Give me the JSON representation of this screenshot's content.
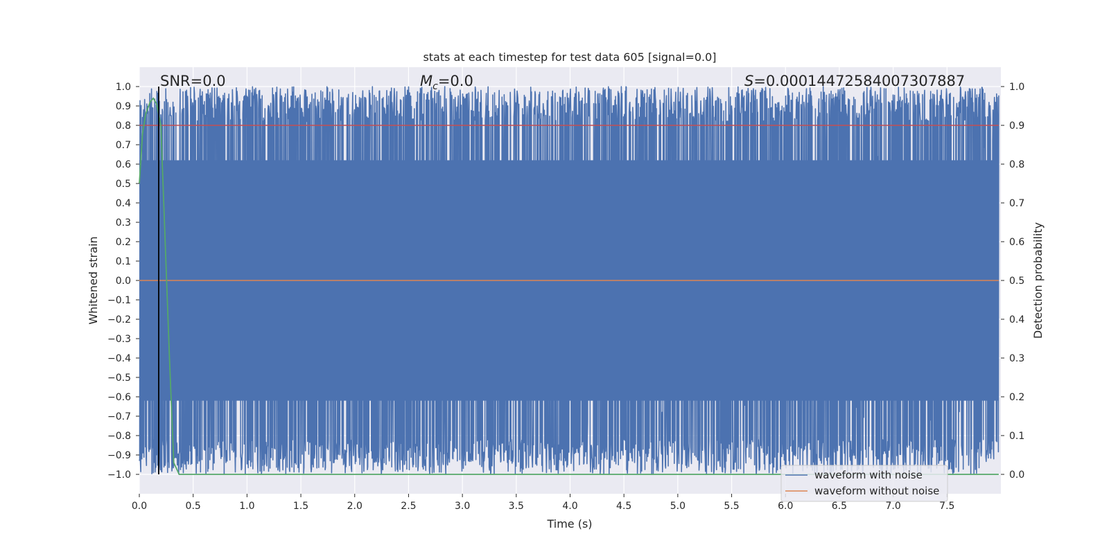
{
  "chart_data": {
    "type": "line",
    "title": "stats at each timestep for test data 605 [signal=0.0]",
    "xlabel": "Time (s)",
    "ylabel": "Whitened strain",
    "ylabel_right": "Detection probability",
    "xlim": [
      0.0,
      8.0
    ],
    "ylim": [
      -1.1,
      1.1
    ],
    "ylim_right": [
      -0.05,
      1.05
    ],
    "x_ticks": [
      0.0,
      0.5,
      1.0,
      1.5,
      2.0,
      2.5,
      3.0,
      3.5,
      4.0,
      4.5,
      5.0,
      5.5,
      6.0,
      6.5,
      7.0,
      7.5
    ],
    "x_tick_labels": [
      "0.0",
      "0.5",
      "1.0",
      "1.5",
      "2.0",
      "2.5",
      "3.0",
      "3.5",
      "4.0",
      "4.5",
      "5.0",
      "5.5",
      "6.0",
      "6.5",
      "7.0",
      "7.5"
    ],
    "y_ticks": [
      1.0,
      0.9,
      0.8,
      0.7,
      0.6,
      0.5,
      0.4,
      0.3,
      0.2,
      0.1,
      0.0,
      -0.1,
      -0.2,
      -0.3,
      -0.4,
      -0.5,
      -0.6,
      -0.7,
      -0.8,
      -0.9,
      -1.0
    ],
    "y_tick_labels": [
      "1.0",
      "0.9",
      "0.8",
      "0.7",
      "0.6",
      "0.5",
      "0.4",
      "0.3",
      "0.2",
      "0.1",
      "0.0",
      "−0.1",
      "−0.2",
      "−0.3",
      "−0.4",
      "−0.5",
      "−0.6",
      "−0.7",
      "−0.8",
      "−0.9",
      "−1.0"
    ],
    "y_right_ticks": [
      1.0,
      0.9,
      0.8,
      0.7,
      0.6,
      0.5,
      0.4,
      0.3,
      0.2,
      0.1,
      0.0
    ],
    "y_right_tick_labels": [
      "1.0",
      "0.9",
      "0.8",
      "0.7",
      "0.6",
      "0.5",
      "0.4",
      "0.3",
      "0.2",
      "0.1",
      "0.0"
    ],
    "grid": true,
    "legend_position": "lower-right",
    "annotations": {
      "snr": "SNR=0.0",
      "mc_symbol": "M",
      "mc_subscript": "c",
      "mc_value": "=0.0",
      "s_symbol": "S",
      "s_value": "=0.00014472584007307887"
    },
    "series": [
      {
        "name": "waveform with noise",
        "axis": "left",
        "color": "#4c72b0",
        "description_values": "dense whitened-noise oscillation spanning approx. -1.0 to 1.0 over the full time range 0.0–8.0 s"
      },
      {
        "name": "waveform without noise",
        "axis": "left",
        "color": "#dd8452",
        "x": [
          0.0,
          8.0
        ],
        "y": [
          0.0,
          0.0
        ]
      },
      {
        "axis": "right",
        "color": "#55a868",
        "x": [
          0.0,
          0.03,
          0.06,
          0.1,
          0.13,
          0.16,
          0.2,
          0.24,
          0.28,
          0.32,
          0.37,
          0.42,
          1.0,
          2.0,
          3.0,
          4.0,
          5.0,
          6.0,
          7.0,
          8.0
        ],
        "y": [
          0.75,
          0.88,
          0.93,
          0.96,
          0.97,
          0.955,
          0.9,
          0.6,
          0.3,
          0.03,
          0.0,
          0.0,
          0.0,
          0.0,
          0.0,
          0.0,
          0.0,
          0.0,
          0.0,
          0.0
        ]
      },
      {
        "axis": "right",
        "color": "#c44e52",
        "x": [
          0.0,
          8.0
        ],
        "y": [
          0.9,
          0.9
        ]
      }
    ],
    "vertical_line": {
      "x": 0.18,
      "color": "#000000"
    }
  }
}
